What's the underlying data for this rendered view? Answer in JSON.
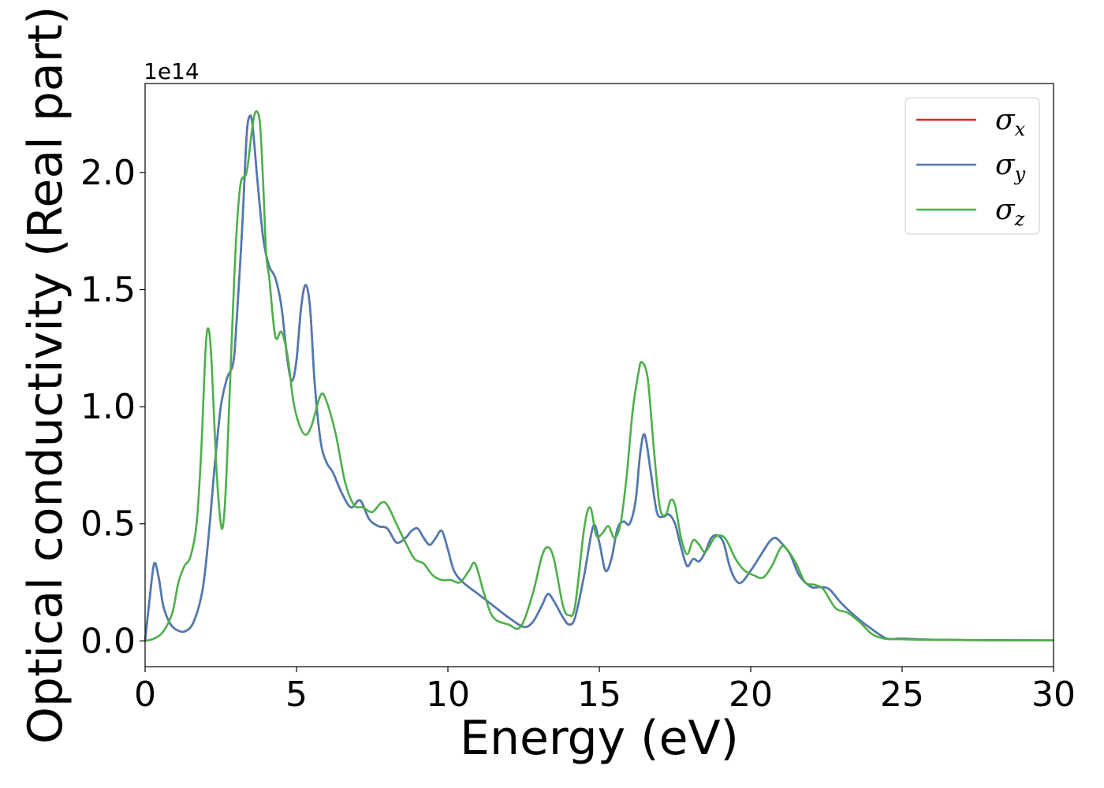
{
  "chart_data": {
    "type": "line",
    "xlabel": "Energy (eV)",
    "ylabel": "Optical conductivity (Real part)",
    "y_offset_label": "1e14",
    "xlim": [
      0,
      30
    ],
    "ylim": [
      -0.11,
      2.38
    ],
    "x_ticks": [
      0,
      5,
      10,
      15,
      20,
      25,
      30
    ],
    "x_tick_labels": [
      "0",
      "5",
      "10",
      "15",
      "20",
      "25",
      "30"
    ],
    "y_ticks": [
      0.0,
      0.5,
      1.0,
      1.5,
      2.0
    ],
    "y_tick_labels": [
      "0.0",
      "0.5",
      "1.0",
      "1.5",
      "2.0"
    ],
    "grid": false,
    "legend_position": "top-right",
    "series": [
      {
        "name": "σx",
        "legend_base": "σ",
        "legend_sub": "x",
        "color": "#d62728",
        "x": [
          0,
          0.15,
          0.3,
          0.45,
          0.6,
          0.8,
          1.0,
          1.3,
          1.6,
          1.9,
          2.1,
          2.3,
          2.5,
          2.7,
          2.9,
          3.0,
          3.2,
          3.35,
          3.45,
          3.55,
          3.7,
          3.9,
          4.1,
          4.3,
          4.5,
          4.7,
          4.85,
          5.0,
          5.15,
          5.3,
          5.45,
          5.6,
          5.8,
          6.0,
          6.2,
          6.5,
          6.8,
          7.1,
          7.4,
          7.7,
          8.0,
          8.3,
          8.6,
          8.8,
          9.0,
          9.2,
          9.4,
          9.6,
          9.8,
          10.0,
          10.2,
          10.5,
          11.0,
          11.5,
          12.0,
          12.5,
          12.8,
          13.1,
          13.3,
          13.5,
          13.8,
          14.0,
          14.2,
          14.5,
          14.8,
          15.0,
          15.2,
          15.4,
          15.6,
          15.8,
          16.0,
          16.2,
          16.35,
          16.5,
          16.7,
          16.9,
          17.1,
          17.3,
          17.5,
          17.7,
          17.9,
          18.1,
          18.3,
          18.5,
          18.7,
          18.9,
          19.1,
          19.3,
          19.5,
          19.7,
          20.0,
          20.3,
          20.6,
          20.8,
          21.0,
          21.3,
          21.6,
          22.0,
          22.3,
          22.6,
          23.0,
          23.5,
          24.0,
          24.5,
          25.0,
          26.0,
          28.0,
          30.0
        ],
        "y": [
          0.0,
          0.18,
          0.33,
          0.27,
          0.15,
          0.08,
          0.05,
          0.04,
          0.08,
          0.22,
          0.45,
          0.75,
          1.0,
          1.12,
          1.18,
          1.32,
          1.75,
          2.15,
          2.24,
          2.2,
          1.98,
          1.72,
          1.6,
          1.55,
          1.43,
          1.2,
          1.11,
          1.2,
          1.42,
          1.52,
          1.42,
          1.1,
          0.85,
          0.76,
          0.72,
          0.63,
          0.57,
          0.6,
          0.52,
          0.49,
          0.48,
          0.42,
          0.44,
          0.47,
          0.48,
          0.44,
          0.41,
          0.44,
          0.47,
          0.39,
          0.3,
          0.25,
          0.2,
          0.15,
          0.1,
          0.06,
          0.08,
          0.15,
          0.2,
          0.17,
          0.1,
          0.07,
          0.1,
          0.28,
          0.49,
          0.42,
          0.3,
          0.35,
          0.48,
          0.51,
          0.5,
          0.6,
          0.8,
          0.88,
          0.72,
          0.55,
          0.53,
          0.54,
          0.5,
          0.4,
          0.32,
          0.35,
          0.34,
          0.38,
          0.44,
          0.45,
          0.42,
          0.32,
          0.26,
          0.25,
          0.3,
          0.36,
          0.42,
          0.44,
          0.42,
          0.37,
          0.28,
          0.23,
          0.23,
          0.22,
          0.16,
          0.1,
          0.05,
          0.01,
          0.01,
          0.005,
          0.003,
          0.002
        ]
      },
      {
        "name": "σy",
        "legend_base": "σ",
        "legend_sub": "y",
        "color": "#4c7bb3",
        "x": [
          0,
          0.15,
          0.3,
          0.45,
          0.6,
          0.8,
          1.0,
          1.3,
          1.6,
          1.9,
          2.1,
          2.3,
          2.5,
          2.7,
          2.9,
          3.0,
          3.2,
          3.35,
          3.45,
          3.55,
          3.7,
          3.9,
          4.1,
          4.3,
          4.5,
          4.7,
          4.85,
          5.0,
          5.15,
          5.3,
          5.45,
          5.6,
          5.8,
          6.0,
          6.2,
          6.5,
          6.8,
          7.1,
          7.4,
          7.7,
          8.0,
          8.3,
          8.6,
          8.8,
          9.0,
          9.2,
          9.4,
          9.6,
          9.8,
          10.0,
          10.2,
          10.5,
          11.0,
          11.5,
          12.0,
          12.5,
          12.8,
          13.1,
          13.3,
          13.5,
          13.8,
          14.0,
          14.2,
          14.5,
          14.8,
          15.0,
          15.2,
          15.4,
          15.6,
          15.8,
          16.0,
          16.2,
          16.35,
          16.5,
          16.7,
          16.9,
          17.1,
          17.3,
          17.5,
          17.7,
          17.9,
          18.1,
          18.3,
          18.5,
          18.7,
          18.9,
          19.1,
          19.3,
          19.5,
          19.7,
          20.0,
          20.3,
          20.6,
          20.8,
          21.0,
          21.3,
          21.6,
          22.0,
          22.3,
          22.6,
          23.0,
          23.5,
          24.0,
          24.5,
          25.0,
          26.0,
          28.0,
          30.0
        ],
        "y": [
          0.0,
          0.18,
          0.33,
          0.27,
          0.15,
          0.08,
          0.05,
          0.04,
          0.08,
          0.22,
          0.45,
          0.75,
          1.0,
          1.12,
          1.18,
          1.32,
          1.75,
          2.15,
          2.24,
          2.2,
          1.98,
          1.72,
          1.6,
          1.55,
          1.43,
          1.2,
          1.11,
          1.2,
          1.42,
          1.52,
          1.42,
          1.1,
          0.85,
          0.76,
          0.72,
          0.63,
          0.57,
          0.6,
          0.52,
          0.49,
          0.48,
          0.42,
          0.44,
          0.47,
          0.48,
          0.44,
          0.41,
          0.44,
          0.47,
          0.39,
          0.3,
          0.25,
          0.2,
          0.15,
          0.1,
          0.06,
          0.08,
          0.15,
          0.2,
          0.17,
          0.1,
          0.07,
          0.1,
          0.28,
          0.49,
          0.42,
          0.3,
          0.35,
          0.48,
          0.51,
          0.5,
          0.6,
          0.8,
          0.88,
          0.72,
          0.55,
          0.53,
          0.54,
          0.5,
          0.4,
          0.32,
          0.35,
          0.34,
          0.38,
          0.44,
          0.45,
          0.42,
          0.32,
          0.26,
          0.25,
          0.3,
          0.36,
          0.42,
          0.44,
          0.42,
          0.37,
          0.28,
          0.23,
          0.23,
          0.22,
          0.16,
          0.1,
          0.05,
          0.01,
          0.01,
          0.005,
          0.003,
          0.002
        ]
      },
      {
        "name": "σz",
        "legend_base": "σ",
        "legend_sub": "z",
        "color": "#4daf4a",
        "x": [
          0,
          0.3,
          0.6,
          0.9,
          1.1,
          1.3,
          1.5,
          1.7,
          1.85,
          2.0,
          2.1,
          2.2,
          2.35,
          2.5,
          2.6,
          2.7,
          2.85,
          3.0,
          3.15,
          3.35,
          3.5,
          3.6,
          3.7,
          3.8,
          3.9,
          4.0,
          4.1,
          4.3,
          4.5,
          4.7,
          4.9,
          5.1,
          5.3,
          5.5,
          5.8,
          6.0,
          6.3,
          6.6,
          6.9,
          7.2,
          7.5,
          7.8,
          8.0,
          8.3,
          8.6,
          8.9,
          9.2,
          9.5,
          9.8,
          10.1,
          10.4,
          10.7,
          10.9,
          11.2,
          11.5,
          12.0,
          12.4,
          12.8,
          13.1,
          13.3,
          13.5,
          13.8,
          14.0,
          14.2,
          14.5,
          14.7,
          14.9,
          15.1,
          15.3,
          15.5,
          15.7,
          15.9,
          16.1,
          16.3,
          16.4,
          16.6,
          16.8,
          17.0,
          17.2,
          17.35,
          17.5,
          17.7,
          17.9,
          18.1,
          18.3,
          18.5,
          18.8,
          19.0,
          19.2,
          19.5,
          19.8,
          20.1,
          20.4,
          20.7,
          21.0,
          21.2,
          21.5,
          21.8,
          22.1,
          22.4,
          22.8,
          23.2,
          23.6,
          24.0,
          24.4,
          25.0,
          26.0,
          28.0,
          30.0
        ],
        "y": [
          0.0,
          0.01,
          0.04,
          0.12,
          0.25,
          0.32,
          0.36,
          0.5,
          0.8,
          1.25,
          1.33,
          1.18,
          0.75,
          0.5,
          0.52,
          0.75,
          1.25,
          1.7,
          1.95,
          2.0,
          2.15,
          2.24,
          2.26,
          2.2,
          1.95,
          1.65,
          1.55,
          1.3,
          1.32,
          1.22,
          1.02,
          0.92,
          0.88,
          0.92,
          1.05,
          1.02,
          0.88,
          0.68,
          0.58,
          0.57,
          0.55,
          0.59,
          0.58,
          0.5,
          0.42,
          0.35,
          0.33,
          0.28,
          0.26,
          0.26,
          0.25,
          0.3,
          0.33,
          0.2,
          0.1,
          0.07,
          0.06,
          0.2,
          0.36,
          0.4,
          0.35,
          0.15,
          0.11,
          0.15,
          0.48,
          0.57,
          0.45,
          0.46,
          0.49,
          0.44,
          0.5,
          0.7,
          0.98,
          1.15,
          1.19,
          1.12,
          0.82,
          0.57,
          0.54,
          0.6,
          0.58,
          0.44,
          0.37,
          0.43,
          0.41,
          0.38,
          0.44,
          0.45,
          0.43,
          0.35,
          0.3,
          0.28,
          0.27,
          0.32,
          0.4,
          0.39,
          0.33,
          0.25,
          0.24,
          0.22,
          0.14,
          0.12,
          0.08,
          0.03,
          0.01,
          0.007,
          0.004,
          0.003,
          0.002
        ]
      }
    ]
  }
}
